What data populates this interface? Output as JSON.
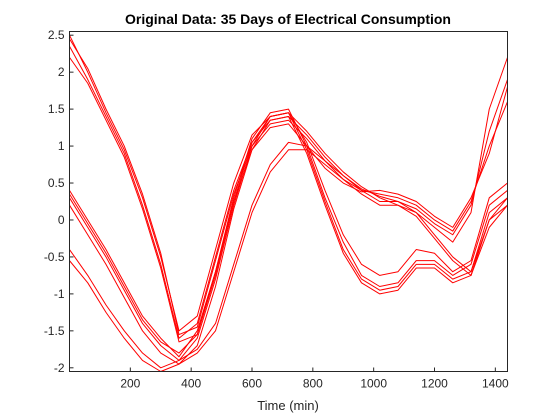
{
  "chart_data": {
    "type": "line",
    "title": "Original Data: 35 Days of Electrical Consumption",
    "xlabel": "Time (min)",
    "ylabel": "",
    "xlim": [
      0,
      1440
    ],
    "ylim": [
      -2.05,
      2.55
    ],
    "xticks": [
      200,
      400,
      600,
      800,
      1000,
      1200,
      1400
    ],
    "yticks": [
      -2,
      -1.5,
      -1,
      -0.5,
      0,
      0.5,
      1,
      1.5,
      2,
      2.5
    ],
    "xtick_labels": [
      "200",
      "400",
      "600",
      "800",
      "1000",
      "1200",
      "1400"
    ],
    "ytick_labels": [
      "-2",
      "-1.5",
      "-1",
      "-0.5",
      "0",
      "0.5",
      "1",
      "1.5",
      "2",
      "2.5"
    ],
    "grid": false,
    "line_color": "#ff0000",
    "series": [
      {
        "x": [
          0,
          60,
          120,
          180,
          240,
          300,
          360,
          420,
          480,
          540,
          600,
          660,
          720,
          780,
          840,
          900,
          960,
          1020,
          1080,
          1140,
          1200,
          1260,
          1320,
          1380,
          1440
        ],
        "values": [
          2.5,
          2.0,
          1.45,
          0.95,
          0.3,
          -0.5,
          -1.5,
          -1.3,
          -0.4,
          0.5,
          1.15,
          1.4,
          1.45,
          1.2,
          0.9,
          0.65,
          0.45,
          0.3,
          0.2,
          0.1,
          -0.1,
          -0.3,
          0.1,
          1.5,
          2.2
        ]
      },
      {
        "x": [
          0,
          60,
          120,
          180,
          240,
          300,
          360,
          420,
          480,
          540,
          600,
          660,
          720,
          780,
          840,
          900,
          960,
          1020,
          1080,
          1140,
          1200,
          1260,
          1320,
          1380,
          1440
        ],
        "values": [
          2.35,
          1.9,
          1.4,
          0.9,
          0.2,
          -0.6,
          -1.6,
          -1.4,
          -0.5,
          0.4,
          1.05,
          1.35,
          1.4,
          1.15,
          0.85,
          0.6,
          0.42,
          0.32,
          0.25,
          0.15,
          -0.05,
          -0.2,
          0.2,
          1.2,
          1.9
        ]
      },
      {
        "x": [
          0,
          60,
          120,
          180,
          240,
          300,
          360,
          420,
          480,
          540,
          600,
          660,
          720,
          780,
          840,
          900,
          960,
          1020,
          1080,
          1140,
          1200,
          1260,
          1320,
          1380,
          1440
        ],
        "values": [
          2.45,
          2.05,
          1.5,
          1.0,
          0.35,
          -0.45,
          -1.55,
          -1.45,
          -0.55,
          0.35,
          1.0,
          1.3,
          1.35,
          1.1,
          0.8,
          0.55,
          0.4,
          0.35,
          0.3,
          0.2,
          0.0,
          -0.15,
          0.25,
          1.0,
          1.6
        ]
      },
      {
        "x": [
          0,
          60,
          120,
          180,
          240,
          300,
          360,
          420,
          480,
          540,
          600,
          660,
          720,
          780,
          840,
          900,
          960,
          1020,
          1080,
          1140,
          1200,
          1260,
          1320,
          1380,
          1440
        ],
        "values": [
          2.2,
          1.85,
          1.35,
          0.85,
          0.15,
          -0.65,
          -1.65,
          -1.55,
          -0.7,
          0.25,
          0.95,
          1.25,
          1.3,
          1.0,
          0.7,
          0.5,
          0.38,
          0.4,
          0.35,
          0.25,
          0.05,
          -0.1,
          0.3,
          0.9,
          1.8
        ]
      },
      {
        "x": [
          0,
          60,
          120,
          180,
          240,
          300,
          360,
          420,
          480,
          540,
          600,
          660,
          720,
          780,
          840,
          900,
          960,
          1020,
          1080,
          1140,
          1200,
          1260,
          1320,
          1380,
          1440
        ],
        "values": [
          0.4,
          0.0,
          -0.4,
          -0.85,
          -1.3,
          -1.6,
          -1.85,
          -1.5,
          -0.7,
          0.3,
          1.1,
          1.45,
          1.5,
          1.0,
          0.3,
          -0.3,
          -0.75,
          -0.9,
          -0.85,
          -0.55,
          -0.55,
          -0.75,
          -0.6,
          0.2,
          0.4
        ]
      },
      {
        "x": [
          0,
          60,
          120,
          180,
          240,
          300,
          360,
          420,
          480,
          540,
          600,
          660,
          720,
          780,
          840,
          900,
          960,
          1020,
          1080,
          1140,
          1200,
          1260,
          1320,
          1380,
          1440
        ],
        "values": [
          0.3,
          -0.1,
          -0.5,
          -0.95,
          -1.4,
          -1.7,
          -1.9,
          -1.6,
          -0.8,
          0.2,
          1.0,
          1.4,
          1.45,
          0.95,
          0.25,
          -0.4,
          -0.8,
          -0.95,
          -0.9,
          -0.6,
          -0.6,
          -0.8,
          -0.7,
          0.1,
          0.3
        ]
      },
      {
        "x": [
          0,
          60,
          120,
          180,
          240,
          300,
          360,
          420,
          480,
          540,
          600,
          660,
          720,
          780,
          840,
          900,
          960,
          1020,
          1080,
          1140,
          1200,
          1260,
          1320,
          1380,
          1440
        ],
        "values": [
          0.2,
          -0.2,
          -0.6,
          -1.05,
          -1.5,
          -1.8,
          -1.95,
          -1.7,
          -0.9,
          0.15,
          0.95,
          1.35,
          1.4,
          0.9,
          0.2,
          -0.45,
          -0.85,
          -1.0,
          -0.95,
          -0.65,
          -0.65,
          -0.85,
          -0.75,
          0.0,
          0.2
        ]
      },
      {
        "x": [
          0,
          60,
          120,
          180,
          240,
          300,
          360,
          420,
          480,
          540,
          600,
          660,
          720,
          780,
          840,
          900,
          960,
          1020,
          1080,
          1140,
          1200,
          1260,
          1320,
          1380,
          1440
        ],
        "values": [
          0.35,
          -0.05,
          -0.45,
          -0.9,
          -1.35,
          -1.65,
          -1.8,
          -1.55,
          -0.75,
          0.25,
          1.05,
          1.4,
          1.45,
          1.05,
          0.4,
          -0.2,
          -0.6,
          -0.75,
          -0.7,
          -0.4,
          -0.45,
          -0.7,
          -0.55,
          0.3,
          0.5
        ]
      },
      {
        "x": [
          0,
          60,
          120,
          180,
          240,
          300,
          360,
          420,
          480,
          540,
          600,
          660,
          720,
          780,
          840,
          900,
          960,
          1020,
          1080,
          1140,
          1200,
          1260,
          1320,
          1380,
          1440
        ],
        "values": [
          -0.4,
          -0.75,
          -1.15,
          -1.5,
          -1.8,
          -2.0,
          -1.9,
          -1.75,
          -1.4,
          -0.6,
          0.2,
          0.75,
          1.05,
          1.0,
          0.8,
          0.6,
          0.4,
          0.25,
          0.25,
          0.1,
          -0.2,
          -0.5,
          -0.7,
          0.0,
          0.3
        ]
      },
      {
        "x": [
          0,
          60,
          120,
          180,
          240,
          300,
          360,
          420,
          480,
          540,
          600,
          660,
          720,
          780,
          840,
          900,
          960,
          1020,
          1080,
          1140,
          1200,
          1260,
          1320,
          1380,
          1440
        ],
        "values": [
          -0.55,
          -0.85,
          -1.25,
          -1.6,
          -1.9,
          -2.05,
          -1.95,
          -1.8,
          -1.5,
          -0.7,
          0.1,
          0.65,
          0.95,
          0.95,
          0.75,
          0.55,
          0.35,
          0.2,
          0.2,
          0.05,
          -0.25,
          -0.55,
          -0.75,
          -0.1,
          0.2
        ]
      }
    ]
  }
}
